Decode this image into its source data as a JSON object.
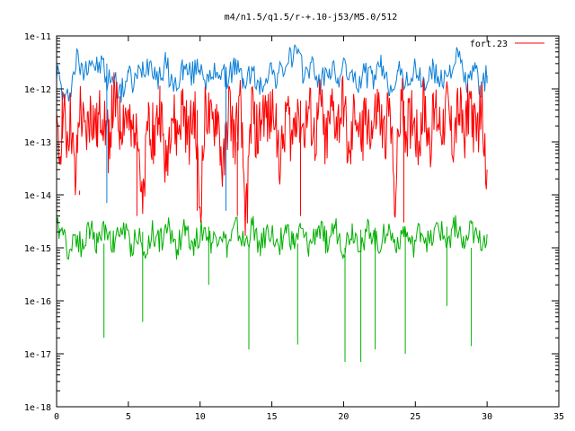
{
  "chart_data": {
    "type": "line",
    "title": "m4/n1.5/q1.5/r-+.10-j53/M5.0/512",
    "xlabel": "",
    "ylabel": "",
    "xlim": [
      0,
      35
    ],
    "ylim": [
      1e-18,
      1e-11
    ],
    "yscale": "log",
    "grid": false,
    "legend_position": "top-right",
    "x_ticks": [
      0,
      5,
      10,
      15,
      20,
      25,
      30,
      35
    ],
    "x_tick_labels": [
      "0",
      "5",
      "10",
      "15",
      "20",
      "25",
      "30",
      "35"
    ],
    "y_ticks": [
      1e-18,
      1e-17,
      1e-16,
      1e-15,
      1e-14,
      1e-13,
      1e-12,
      1e-11
    ],
    "y_tick_labels": [
      "1e-18",
      "1e-17",
      "1e-16",
      "1e-15",
      "1e-14",
      "1e-13",
      "1e-12",
      "1e-11"
    ],
    "series": [
      {
        "color": "#0b7fd8",
        "x": [
          0.0,
          0.6,
          1.1,
          1.4,
          1.8,
          2.3,
          2.8,
          3.3,
          3.5,
          3.8,
          4.5,
          5.0,
          5.3,
          6.0,
          6.6,
          7.1,
          7.6,
          8.2,
          8.8,
          9.4,
          10.0,
          10.6,
          11.2,
          11.8,
          12.4,
          13.0,
          13.6,
          14.2,
          14.8,
          15.4,
          16.0,
          16.6,
          17.2,
          17.8,
          18.4,
          19.0,
          19.6,
          20.2,
          20.8,
          21.4,
          22.0,
          22.6,
          23.2,
          23.8,
          24.4,
          25.0,
          25.6,
          26.2,
          26.8,
          27.4,
          28.0,
          28.6,
          29.2,
          29.6,
          30.0
        ],
        "y": [
          2.5e-12,
          5e-13,
          1.5e-12,
          4e-12,
          2e-12,
          4e-12,
          2.5e-12,
          3e-12,
          1e-12,
          2e-12,
          8e-13,
          2e-12,
          1.2e-12,
          2.5e-12,
          3.5e-12,
          1.5e-12,
          3e-12,
          1e-12,
          2.5e-12,
          1.8e-12,
          3e-12,
          1.2e-12,
          2.5e-12,
          1.5e-12,
          2.8e-12,
          1.4e-12,
          2e-12,
          1e-12,
          2.5e-12,
          1.6e-12,
          3e-12,
          5e-12,
          2e-12,
          2.8e-12,
          1.2e-12,
          2.5e-12,
          1.6e-12,
          2.6e-12,
          1.2e-12,
          2e-12,
          1.5e-12,
          2.5e-12,
          1.1e-12,
          2e-12,
          1.4e-12,
          2.2e-12,
          1.2e-12,
          2.3e-12,
          1.3e-12,
          2.5e-12,
          4e-12,
          1.2e-12,
          2.2e-12,
          1e-12,
          1.8e-12
        ]
      },
      {
        "name": "fort.23",
        "color": "#ff0000",
        "x": [
          0.0,
          0.2,
          0.4,
          0.7,
          1.0,
          1.3,
          1.6,
          2.0,
          2.4,
          2.8,
          3.2,
          3.6,
          4.0,
          4.4,
          4.8,
          5.2,
          5.6,
          6.0,
          6.4,
          6.8,
          7.2,
          7.6,
          8.0,
          8.4,
          8.8,
          9.2,
          9.6,
          10.0,
          10.4,
          10.8,
          11.2,
          11.6,
          12.0,
          12.4,
          12.8,
          13.2,
          13.6,
          14.0,
          14.4,
          14.8,
          15.2,
          15.6,
          16.0,
          16.4,
          16.8,
          17.2,
          17.6,
          18.0,
          18.4,
          18.8,
          19.2,
          19.6,
          20.0,
          20.4,
          20.8,
          21.2,
          21.6,
          22.0,
          22.4,
          22.8,
          23.2,
          23.6,
          24.0,
          24.4,
          24.8,
          25.2,
          25.6,
          26.0,
          26.4,
          26.8,
          27.2,
          27.6,
          28.0,
          28.4,
          28.8,
          29.2,
          29.6,
          30.0
        ],
        "y": [
          1e-13,
          5e-14,
          4e-13,
          1.2e-13,
          3e-13,
          1.2e-14,
          5e-13,
          1e-13,
          4e-13,
          1.5e-13,
          5e-13,
          1e-13,
          6e-13,
          2e-13,
          4e-13,
          1e-13,
          5e-13,
          3e-15,
          4e-13,
          1e-13,
          5e-13,
          3e-14,
          4e-13,
          1.2e-13,
          5e-13,
          1e-13,
          4e-13,
          5e-15,
          5e-13,
          1.5e-13,
          4e-13,
          2e-14,
          5e-13,
          1e-13,
          4e-13,
          3e-15,
          5e-13,
          1.2e-13,
          4e-13,
          2e-13,
          6e-13,
          3e-14,
          5e-13,
          1e-13,
          6e-13,
          1.5e-13,
          4e-13,
          1e-13,
          5e-13,
          1e-13,
          4e-13,
          2e-13,
          6e-13,
          3e-14,
          5e-13,
          1e-13,
          4e-13,
          1.5e-13,
          5e-13,
          1e-13,
          4e-13,
          1e-14,
          6e-13,
          1.5e-13,
          4e-13,
          1e-13,
          5e-13,
          1e-13,
          4e-13,
          2e-13,
          5e-13,
          1e-13,
          4e-13,
          1.5e-13,
          7e-13,
          1e-13,
          5e-13,
          3e-14
        ]
      },
      {
        "color": "#00b000",
        "x": [
          0.0,
          0.3,
          0.6,
          0.9,
          1.3,
          1.8,
          2.3,
          2.8,
          3.4,
          4.0,
          4.6,
          5.2,
          5.7,
          6.1,
          6.6,
          7.2,
          7.8,
          8.4,
          9.0,
          9.6,
          10.2,
          10.8,
          11.4,
          11.9,
          12.5,
          13.1,
          13.7,
          14.2,
          14.8,
          15.4,
          16.0,
          16.5,
          17.0,
          17.6,
          18.2,
          18.8,
          19.4,
          20.0,
          20.6,
          21.2,
          21.8,
          22.4,
          23.0,
          23.6,
          24.2,
          24.8,
          25.4,
          26.0,
          26.6,
          27.2,
          27.8,
          28.4,
          28.9,
          29.4,
          30.0
        ],
        "y": [
          2e-15,
          3e-15,
          1.5e-15,
          8e-16,
          2e-15,
          1e-15,
          2.5e-15,
          1.2e-15,
          2.5e-15,
          1.2e-15,
          2.5e-15,
          1e-15,
          2e-15,
          6e-16,
          2e-15,
          1.4e-15,
          2.2e-15,
          1e-15,
          2.4e-15,
          1.1e-15,
          2.5e-15,
          1.2e-15,
          2.2e-15,
          1e-15,
          2.4e-15,
          1.1e-15,
          2.5e-15,
          1e-15,
          2.3e-15,
          1e-15,
          2.4e-15,
          1.2e-15,
          2e-15,
          1e-15,
          2.4e-15,
          1.3e-15,
          2.5e-15,
          1e-15,
          2.2e-15,
          1.2e-15,
          2.4e-15,
          1e-15,
          2.5e-15,
          1.2e-15,
          2.2e-15,
          1e-15,
          2.3e-15,
          1.1e-15,
          2.5e-15,
          1.2e-15,
          3e-15,
          1e-15,
          2.2e-15,
          1.2e-15,
          1.8e-15
        ]
      },
      {
        "color": "#00b000",
        "kind": "dips",
        "x": [
          3.3,
          6.0,
          10.6,
          13.4,
          16.8,
          20.1,
          21.2,
          22.2,
          24.3,
          27.2,
          28.9
        ],
        "y": [
          2e-17,
          4e-17,
          2e-16,
          1.2e-17,
          1.5e-17,
          7e-18,
          7e-18,
          1.2e-17,
          1e-17,
          8e-17,
          1.4e-17
        ]
      },
      {
        "color": "#0b7fd8",
        "kind": "dips",
        "x": [
          3.5,
          11.8
        ],
        "y": [
          7e-15,
          5e-15
        ]
      },
      {
        "color": "#ff0000",
        "kind": "dips",
        "x": [
          1.6,
          5.6,
          6.4,
          9.8,
          12.6,
          17.0,
          24.2
        ],
        "y": [
          1e-14,
          4e-15,
          3e-15,
          5e-15,
          4e-15,
          4e-15,
          3e-15
        ]
      }
    ]
  }
}
